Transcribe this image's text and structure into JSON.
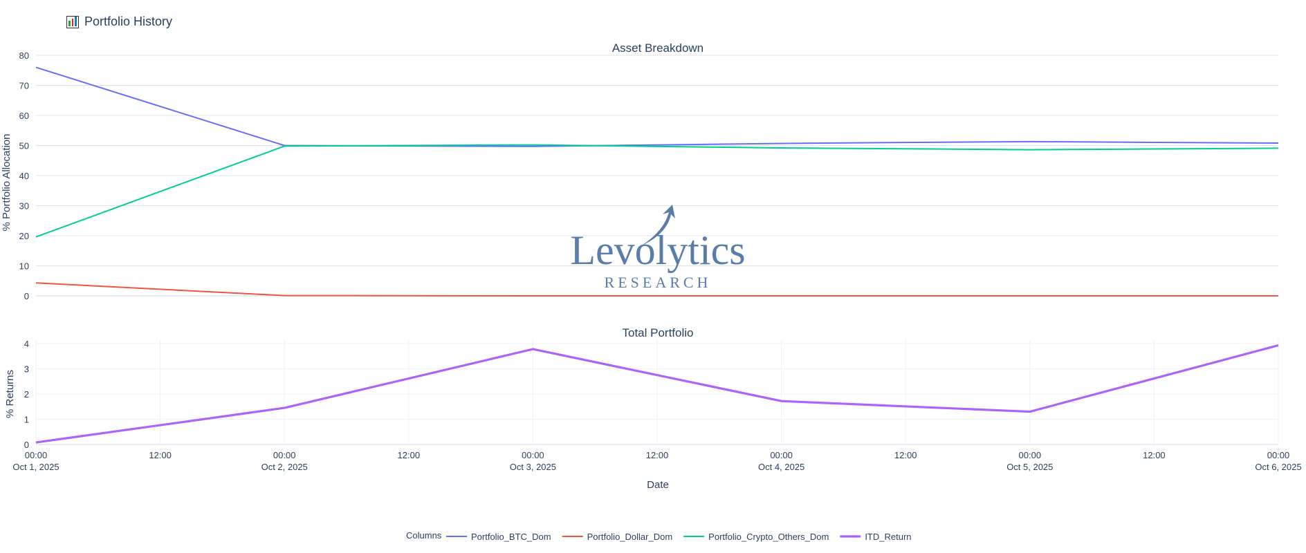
{
  "page": {
    "title": "Portfolio History",
    "title_icon": "bar-chart-icon"
  },
  "watermark": {
    "line1": "Levolytics",
    "line2": "RESEARCH",
    "color": "#5a7ca8"
  },
  "legend": {
    "title": "Columns"
  },
  "x_axis": {
    "title": "Date",
    "ticks": [
      {
        "t": 0,
        "l1": "00:00",
        "l2": "Oct 1, 2025"
      },
      {
        "t": 0.5,
        "l1": "12:00",
        "l2": ""
      },
      {
        "t": 1,
        "l1": "00:00",
        "l2": "Oct 2, 2025"
      },
      {
        "t": 1.5,
        "l1": "12:00",
        "l2": ""
      },
      {
        "t": 2,
        "l1": "00:00",
        "l2": "Oct 3, 2025"
      },
      {
        "t": 2.5,
        "l1": "12:00",
        "l2": ""
      },
      {
        "t": 3,
        "l1": "00:00",
        "l2": "Oct 4, 2025"
      },
      {
        "t": 3.5,
        "l1": "12:00",
        "l2": ""
      },
      {
        "t": 4,
        "l1": "00:00",
        "l2": "Oct 5, 2025"
      },
      {
        "t": 4.5,
        "l1": "12:00",
        "l2": ""
      },
      {
        "t": 5,
        "l1": "00:00",
        "l2": "Oct 6, 2025"
      }
    ]
  },
  "chart_data": [
    {
      "type": "line",
      "title": "Asset Breakdown",
      "xlabel": "",
      "ylabel": "% Portfolio Allocation",
      "x": [
        "2025-10-01",
        "2025-10-02",
        "2025-10-03",
        "2025-10-04",
        "2025-10-05",
        "2025-10-06"
      ],
      "xlim": [
        0,
        5
      ],
      "ylim": [
        -3,
        80
      ],
      "yticks": [
        0,
        10,
        20,
        30,
        40,
        50,
        60,
        70,
        80
      ],
      "grid": true,
      "series": [
        {
          "name": "Portfolio_BTC_Dom",
          "color": "#636efa",
          "values": [
            76.0,
            50.0,
            49.7,
            50.7,
            51.3,
            50.8
          ]
        },
        {
          "name": "Portfolio_Dollar_Dom",
          "color": "#ef553b",
          "values": [
            4.3,
            0.1,
            0.0,
            0.0,
            0.0,
            0.0
          ]
        },
        {
          "name": "Portfolio_Crypto_Others_Dom",
          "color": "#00cc96",
          "values": [
            19.6,
            49.8,
            50.2,
            49.2,
            48.6,
            49.1
          ]
        }
      ]
    },
    {
      "type": "line",
      "title": "Total Portfolio",
      "xlabel": "Date",
      "ylabel": "% Returns",
      "x": [
        "2025-10-01",
        "2025-10-02",
        "2025-10-03",
        "2025-10-04",
        "2025-10-05",
        "2025-10-06"
      ],
      "xlim": [
        0,
        5
      ],
      "ylim": [
        0,
        4.15
      ],
      "yticks": [
        0,
        1,
        2,
        3,
        4
      ],
      "grid": true,
      "legend_position": "bottom-center",
      "series": [
        {
          "name": "ITD_Return",
          "color": "#ab63fa",
          "values": [
            0.08,
            1.45,
            3.78,
            1.72,
            1.3,
            3.93
          ]
        }
      ]
    }
  ]
}
